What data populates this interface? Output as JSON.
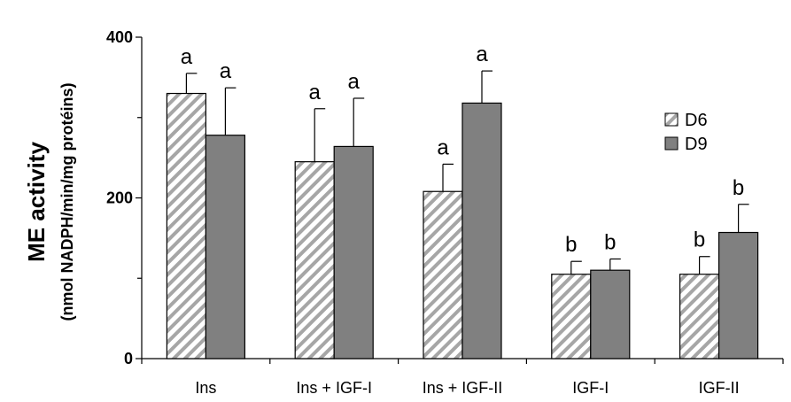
{
  "chart_data": {
    "type": "bar",
    "title": "",
    "ylabel": "ME activity",
    "ylabel_sub": "(nmol NADPH/min/mg protéins)",
    "xlabel": "",
    "ylim": [
      0,
      400
    ],
    "yticks": [
      0,
      200,
      400
    ],
    "grid": false,
    "legend_position": "top-right",
    "categories": [
      "Ins",
      "Ins + IGF-I",
      "Ins + IGF-II",
      "IGF-I",
      "IGF-II"
    ],
    "series": [
      {
        "name": "D6",
        "pattern": "diagonal-hatch",
        "color": "#a6a6a6",
        "values": [
          330,
          245,
          208,
          105,
          105
        ],
        "errors": [
          25,
          66,
          34,
          16,
          22
        ],
        "labels": [
          "a",
          "a",
          "a",
          "b",
          "b"
        ]
      },
      {
        "name": "D9",
        "pattern": "solid",
        "color": "#808080",
        "values": [
          278,
          264,
          318,
          110,
          157
        ],
        "errors": [
          59,
          60,
          40,
          14,
          35
        ],
        "labels": [
          "a",
          "a",
          "a",
          "b",
          "b"
        ]
      }
    ]
  }
}
